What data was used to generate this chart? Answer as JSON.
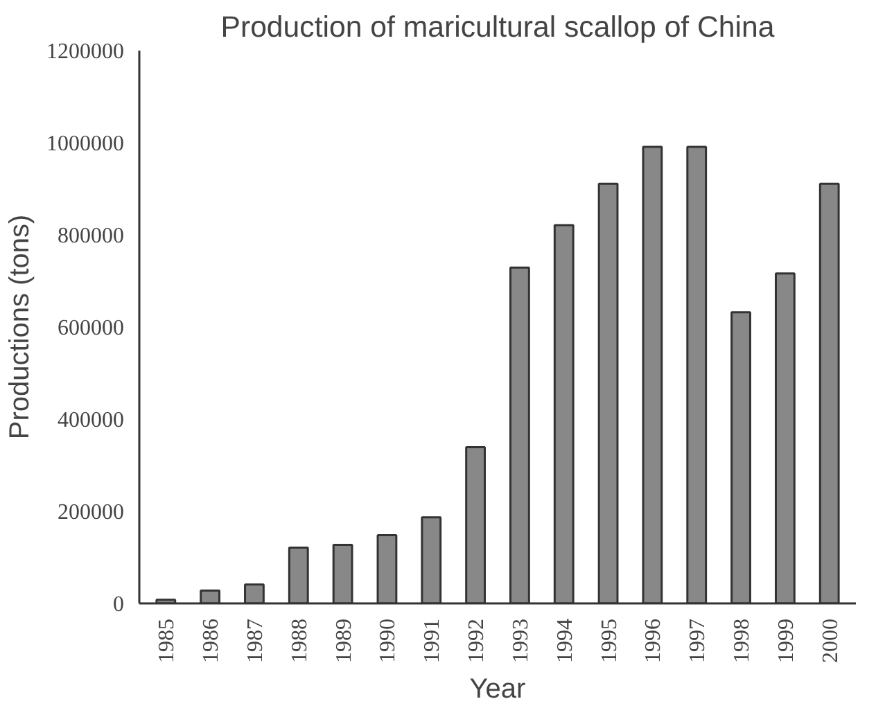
{
  "chart_data": {
    "type": "bar",
    "title": "Production of maricultural scallop of China",
    "xlabel": "Year",
    "ylabel": "Productions (tons)",
    "categories": [
      "1985",
      "1986",
      "1987",
      "1988",
      "1989",
      "1990",
      "1991",
      "1992",
      "1993",
      "1994",
      "1995",
      "1996",
      "1997",
      "1998",
      "1999",
      "2000"
    ],
    "values": [
      8000,
      28000,
      41000,
      121000,
      127000,
      148000,
      187000,
      339000,
      729000,
      821000,
      911000,
      991000,
      991000,
      632000,
      716000,
      911000
    ],
    "color": "#888888",
    "ylim": [
      0,
      1200000
    ],
    "yticks": [
      0,
      200000,
      400000,
      600000,
      800000,
      1000000,
      1200000
    ],
    "grid": false
  }
}
